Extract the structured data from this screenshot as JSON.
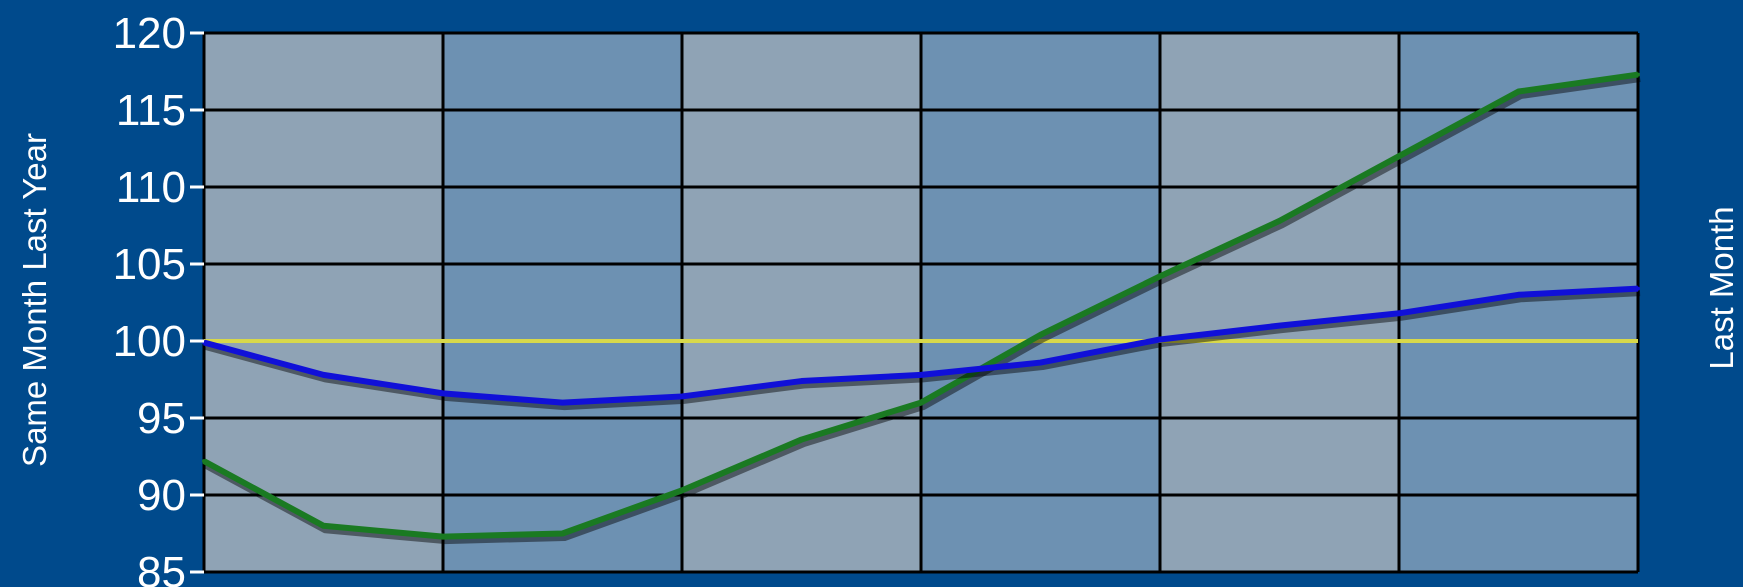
{
  "chart_data": {
    "type": "line",
    "title": "",
    "xlabel": "",
    "ylabel": "Same Month Last Year",
    "ylabel_right": "Last Month",
    "ylim": [
      85,
      120
    ],
    "yticks": [
      85,
      90,
      95,
      100,
      105,
      110,
      115,
      120
    ],
    "x": [
      0,
      1,
      2,
      3,
      4,
      5,
      6,
      7,
      8,
      9,
      10,
      11,
      12
    ],
    "xlim": [
      0,
      12
    ],
    "grid": true,
    "reference_line": 100,
    "series": [
      {
        "color": "#1a7a22",
        "values": [
          92.2,
          88.0,
          87.3,
          87.5,
          90.3,
          93.6,
          96.0,
          100.4,
          104.2,
          107.8,
          112.0,
          116.2,
          117.3
        ]
      },
      {
        "color": "#1010d8",
        "values": [
          99.9,
          97.8,
          96.6,
          96.0,
          96.4,
          97.4,
          97.8,
          98.6,
          100.1,
          101.0,
          101.8,
          103.0,
          103.4
        ]
      }
    ],
    "colors": {
      "background": "#004a8c",
      "band_light": "#8fa3b5",
      "band_dark": "#6d91b2",
      "grid": "#000000",
      "reference": "#d8d84a"
    }
  }
}
